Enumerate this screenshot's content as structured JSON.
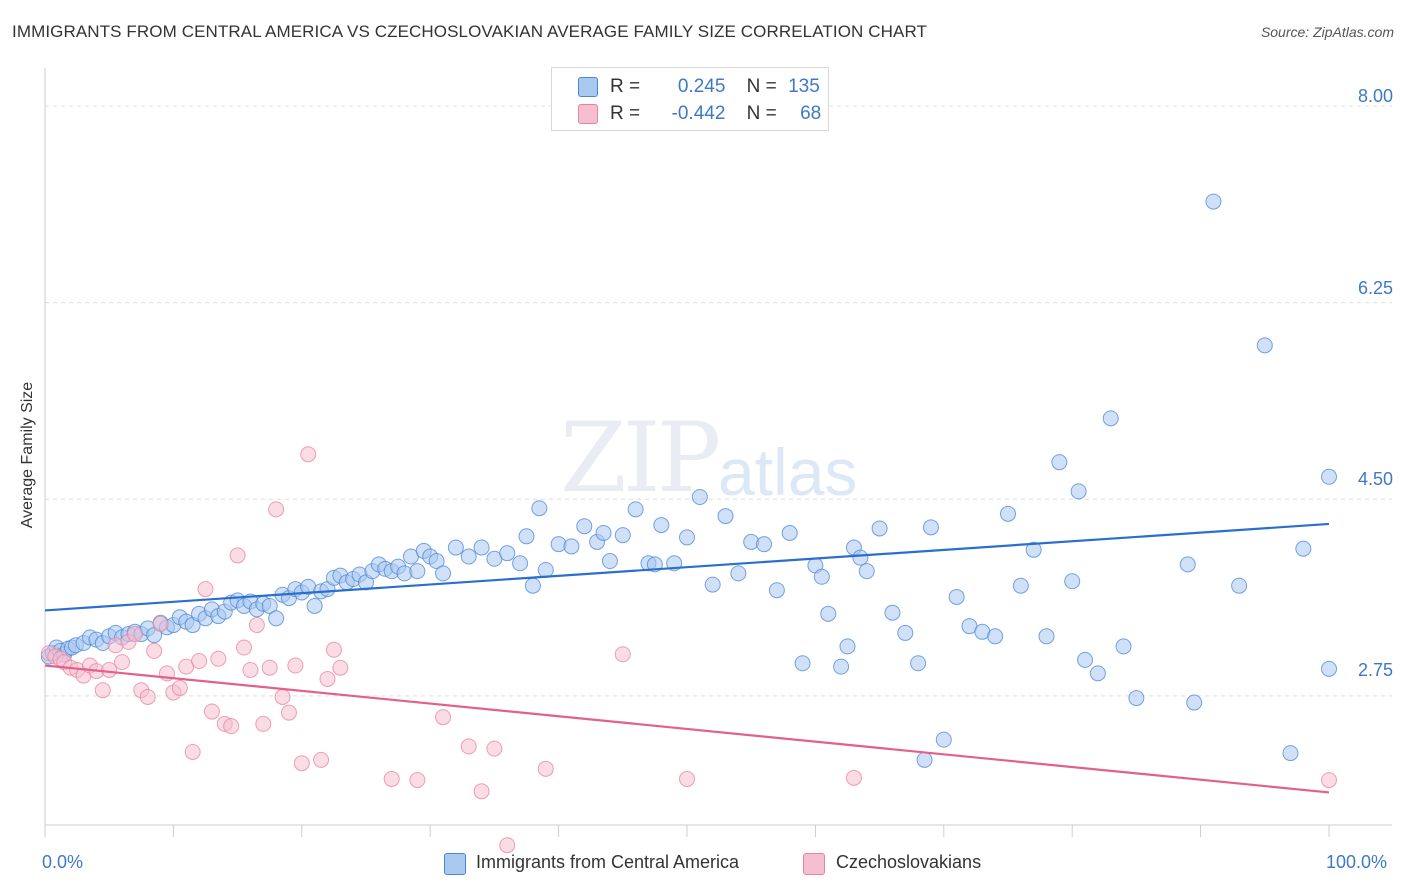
{
  "title": "IMMIGRANTS FROM CENTRAL AMERICA VS CZECHOSLOVAKIAN AVERAGE FAMILY SIZE CORRELATION CHART",
  "source": "Source: ZipAtlas.com",
  "watermark": {
    "zip": "ZIP",
    "atlas": "atlas"
  },
  "legend": {
    "blue": {
      "r_label": "R =",
      "r_value": "0.245",
      "n_label": "N =",
      "n_value": "135"
    },
    "pink": {
      "r_label": "R =",
      "r_value": "-0.442",
      "n_label": "N =",
      "n_value": "68"
    }
  },
  "colors": {
    "blue": "#4a86d8",
    "blue_fill": "#a9c8f0",
    "blue_line": "#2a6fce",
    "pink": "#e8829f",
    "pink_fill": "#f5bfd0",
    "pink_line": "#e2608c",
    "grid": "#dddddd",
    "tick_text": "#3d78c9"
  },
  "chart_data": {
    "type": "scatter",
    "title": "IMMIGRANTS FROM CENTRAL AMERICA VS CZECHOSLOVAKIAN AVERAGE FAMILY SIZE CORRELATION CHART",
    "xlabel": "",
    "ylabel": "Average Family Size",
    "xlim": [
      0,
      100
    ],
    "ylim": [
      1.6,
      8.25
    ],
    "y_ticks": [
      2.75,
      4.5,
      6.25,
      8.0
    ],
    "y_tick_labels": [
      "2.75",
      "4.50",
      "6.25",
      "8.00"
    ],
    "x_tick_labels": [
      "0.0%",
      "100.0%"
    ],
    "series": [
      {
        "name": "Immigrants from Central America",
        "color": "#4a86d8",
        "trend": {
          "x": [
            0,
            100
          ],
          "y": [
            3.51,
            4.28
          ]
        },
        "points": [
          [
            0.3,
            3.1
          ],
          [
            0.6,
            3.13
          ],
          [
            0.9,
            3.18
          ],
          [
            1.2,
            3.15
          ],
          [
            1.5,
            3.12
          ],
          [
            1.8,
            3.17
          ],
          [
            2.1,
            3.18
          ],
          [
            2.4,
            3.2
          ],
          [
            3.0,
            3.22
          ],
          [
            3.5,
            3.27
          ],
          [
            4.0,
            3.25
          ],
          [
            4.5,
            3.22
          ],
          [
            5.0,
            3.28
          ],
          [
            5.5,
            3.31
          ],
          [
            6.0,
            3.27
          ],
          [
            6.5,
            3.3
          ],
          [
            7.0,
            3.32
          ],
          [
            7.5,
            3.3
          ],
          [
            8.0,
            3.35
          ],
          [
            8.5,
            3.29
          ],
          [
            9.0,
            3.4
          ],
          [
            9.5,
            3.36
          ],
          [
            10.0,
            3.38
          ],
          [
            10.5,
            3.45
          ],
          [
            11.0,
            3.41
          ],
          [
            11.5,
            3.38
          ],
          [
            12.0,
            3.48
          ],
          [
            12.5,
            3.44
          ],
          [
            13.0,
            3.52
          ],
          [
            13.5,
            3.46
          ],
          [
            14.0,
            3.5
          ],
          [
            14.5,
            3.58
          ],
          [
            15.0,
            3.6
          ],
          [
            15.5,
            3.55
          ],
          [
            16.0,
            3.59
          ],
          [
            16.5,
            3.52
          ],
          [
            17.0,
            3.57
          ],
          [
            17.5,
            3.55
          ],
          [
            18.0,
            3.44
          ],
          [
            18.5,
            3.65
          ],
          [
            19.0,
            3.62
          ],
          [
            19.5,
            3.7
          ],
          [
            20.0,
            3.67
          ],
          [
            20.5,
            3.72
          ],
          [
            21.0,
            3.55
          ],
          [
            21.5,
            3.68
          ],
          [
            22.0,
            3.7
          ],
          [
            22.5,
            3.8
          ],
          [
            23.0,
            3.82
          ],
          [
            23.5,
            3.76
          ],
          [
            24.0,
            3.79
          ],
          [
            24.5,
            3.83
          ],
          [
            25.0,
            3.76
          ],
          [
            25.5,
            3.86
          ],
          [
            26.0,
            3.92
          ],
          [
            26.5,
            3.88
          ],
          [
            27.0,
            3.86
          ],
          [
            27.5,
            3.9
          ],
          [
            28.0,
            3.84
          ],
          [
            28.5,
            3.99
          ],
          [
            29.0,
            3.86
          ],
          [
            29.5,
            4.04
          ],
          [
            30.0,
            3.99
          ],
          [
            30.5,
            3.95
          ],
          [
            31.0,
            3.84
          ],
          [
            32.0,
            4.07
          ],
          [
            33.0,
            3.99
          ],
          [
            34.0,
            4.07
          ],
          [
            35.0,
            3.97
          ],
          [
            36.0,
            4.02
          ],
          [
            37.0,
            3.93
          ],
          [
            37.5,
            4.17
          ],
          [
            38.0,
            3.73
          ],
          [
            38.5,
            4.42
          ],
          [
            39.0,
            3.87
          ],
          [
            40.0,
            4.1
          ],
          [
            41.0,
            4.08
          ],
          [
            42.0,
            4.26
          ],
          [
            43.0,
            4.12
          ],
          [
            43.5,
            4.2
          ],
          [
            44.0,
            3.95
          ],
          [
            45.0,
            4.18
          ],
          [
            46.0,
            4.41
          ],
          [
            47.0,
            3.93
          ],
          [
            47.5,
            3.92
          ],
          [
            48.0,
            4.27
          ],
          [
            49.0,
            3.93
          ],
          [
            50.0,
            4.16
          ],
          [
            51.0,
            4.52
          ],
          [
            52.0,
            3.74
          ],
          [
            53.0,
            4.35
          ],
          [
            54.0,
            3.84
          ],
          [
            55.0,
            4.12
          ],
          [
            56.0,
            4.1
          ],
          [
            57.0,
            3.69
          ],
          [
            58.0,
            4.2
          ],
          [
            59.0,
            3.04
          ],
          [
            60.0,
            3.91
          ],
          [
            60.5,
            3.81
          ],
          [
            61.0,
            3.48
          ],
          [
            62.0,
            3.01
          ],
          [
            62.5,
            3.19
          ],
          [
            63.0,
            4.07
          ],
          [
            63.5,
            3.98
          ],
          [
            64.0,
            3.86
          ],
          [
            65.0,
            4.24
          ],
          [
            66.0,
            3.49
          ],
          [
            67.0,
            3.31
          ],
          [
            68.0,
            3.04
          ],
          [
            68.5,
            2.18
          ],
          [
            69.0,
            4.25
          ],
          [
            70.0,
            2.36
          ],
          [
            71.0,
            3.63
          ],
          [
            72.0,
            3.37
          ],
          [
            73.0,
            3.32
          ],
          [
            74.0,
            3.28
          ],
          [
            75.0,
            4.37
          ],
          [
            76.0,
            3.73
          ],
          [
            77.0,
            4.05
          ],
          [
            78.0,
            3.28
          ],
          [
            79.0,
            4.83
          ],
          [
            80.0,
            3.77
          ],
          [
            80.5,
            4.57
          ],
          [
            81.0,
            3.07
          ],
          [
            82.0,
            2.95
          ],
          [
            83.0,
            5.22
          ],
          [
            84.0,
            3.19
          ],
          [
            85.0,
            2.73
          ],
          [
            89.0,
            3.92
          ],
          [
            89.5,
            2.69
          ],
          [
            91.0,
            7.15
          ],
          [
            93.0,
            3.73
          ],
          [
            95.0,
            5.87
          ],
          [
            97.0,
            2.24
          ],
          [
            98.0,
            4.06
          ],
          [
            100.0,
            2.99
          ],
          [
            100.0,
            4.7
          ]
        ]
      },
      {
        "name": "Czechoslovakians",
        "color": "#e8829f",
        "trend": {
          "x": [
            0,
            100
          ],
          "y": [
            3.02,
            1.89
          ]
        },
        "points": [
          [
            0.3,
            3.13
          ],
          [
            0.8,
            3.1
          ],
          [
            1.2,
            3.08
          ],
          [
            1.5,
            3.05
          ],
          [
            2.0,
            3.0
          ],
          [
            2.5,
            2.98
          ],
          [
            3.0,
            2.93
          ],
          [
            3.5,
            3.02
          ],
          [
            4.0,
            2.97
          ],
          [
            4.5,
            2.8
          ],
          [
            5.0,
            2.98
          ],
          [
            5.5,
            3.2
          ],
          [
            6.0,
            3.05
          ],
          [
            6.5,
            3.23
          ],
          [
            7.0,
            3.3
          ],
          [
            7.5,
            2.8
          ],
          [
            8.0,
            2.74
          ],
          [
            8.5,
            3.15
          ],
          [
            9.0,
            3.39
          ],
          [
            9.5,
            2.95
          ],
          [
            10.0,
            2.78
          ],
          [
            10.5,
            2.82
          ],
          [
            11.0,
            3.01
          ],
          [
            11.5,
            2.25
          ],
          [
            12.0,
            3.06
          ],
          [
            12.5,
            3.7
          ],
          [
            13.0,
            2.61
          ],
          [
            13.5,
            3.08
          ],
          [
            14.0,
            2.5
          ],
          [
            14.5,
            2.48
          ],
          [
            15.0,
            4.0
          ],
          [
            15.5,
            3.18
          ],
          [
            16.0,
            2.98
          ],
          [
            16.5,
            3.38
          ],
          [
            17.0,
            2.5
          ],
          [
            17.5,
            3.0
          ],
          [
            18.0,
            4.41
          ],
          [
            18.5,
            2.74
          ],
          [
            19.0,
            2.6
          ],
          [
            19.5,
            3.02
          ],
          [
            20.0,
            2.15
          ],
          [
            20.5,
            4.9
          ],
          [
            21.5,
            2.18
          ],
          [
            22.0,
            2.9
          ],
          [
            22.5,
            3.16
          ],
          [
            23.0,
            3.0
          ],
          [
            27.0,
            2.01
          ],
          [
            29.0,
            2.0
          ],
          [
            31.0,
            2.56
          ],
          [
            33.0,
            2.3
          ],
          [
            34.0,
            1.9
          ],
          [
            35.0,
            2.28
          ],
          [
            36.0,
            1.42
          ],
          [
            39.0,
            2.1
          ],
          [
            45.0,
            3.12
          ],
          [
            50.0,
            2.01
          ],
          [
            63.0,
            2.02
          ],
          [
            100.0,
            2.0
          ]
        ]
      }
    ]
  }
}
